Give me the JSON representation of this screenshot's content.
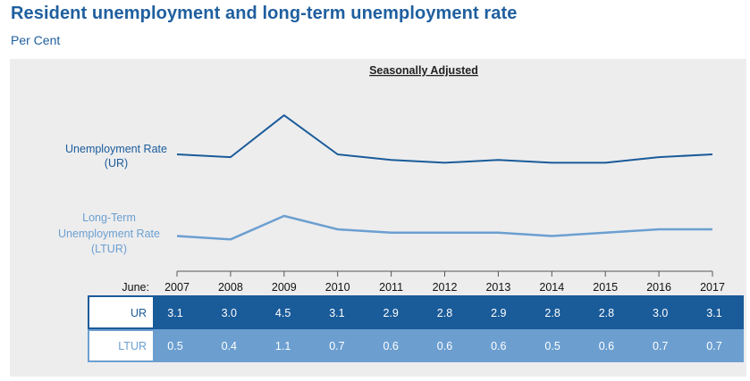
{
  "title": "Resident unemployment and long-term unemployment rate",
  "subtitle": "Per Cent",
  "chart_data": {
    "type": "line",
    "heading": "Seasonally Adjusted",
    "x_prefix": "June:",
    "categories": [
      "2007",
      "2008",
      "2009",
      "2010",
      "2011",
      "2012",
      "2013",
      "2014",
      "2015",
      "2016",
      "2017"
    ],
    "series": [
      {
        "name": "UR",
        "label_lines": [
          "Unemployment Rate",
          "(UR)"
        ],
        "values": [
          3.1,
          3.0,
          4.5,
          3.1,
          2.9,
          2.8,
          2.9,
          2.8,
          2.8,
          3.0,
          3.1
        ],
        "color": "#1a5b99"
      },
      {
        "name": "LTUR",
        "label_lines": [
          "Long-Term",
          "Unemployment Rate",
          "(LTUR)"
        ],
        "values": [
          0.5,
          0.4,
          1.1,
          0.7,
          0.6,
          0.6,
          0.6,
          0.5,
          0.6,
          0.7,
          0.7
        ],
        "color": "#6c9fd0"
      }
    ],
    "grid": false,
    "legend": "left-labels"
  },
  "colors": {
    "panel_bg": "#ededee",
    "title": "#1f5f9f",
    "ur_row": "#1a5b99",
    "ltur_row": "#6c9fd0"
  }
}
